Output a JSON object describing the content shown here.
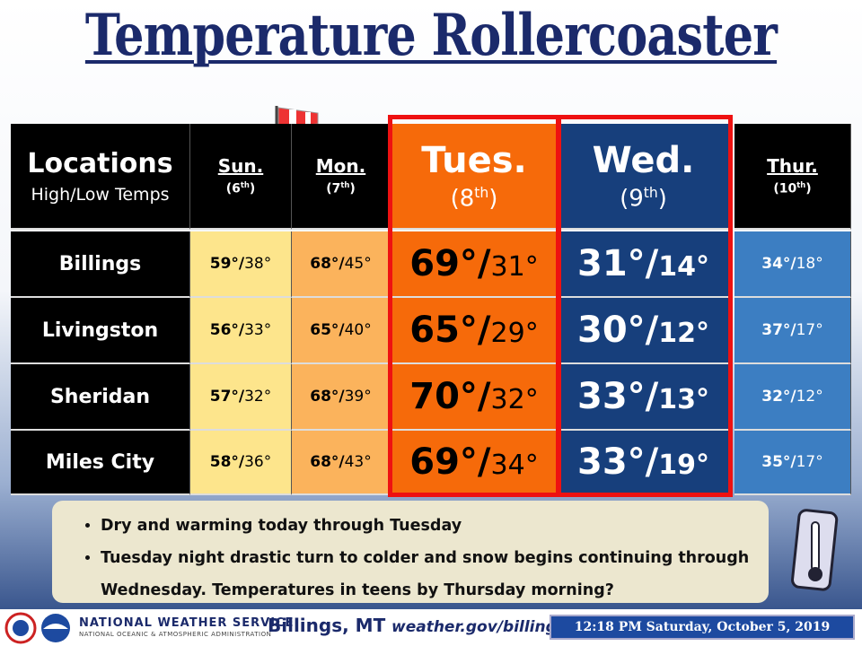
{
  "header": {
    "title": "Temperature Rollercoaster"
  },
  "table": {
    "corner": {
      "title": "Locations",
      "subtitle": "High/Low Temps"
    },
    "days": [
      {
        "name": "Sun.",
        "date": [
          "(6",
          "th",
          ")"
        ]
      },
      {
        "name": "Mon.",
        "date": [
          "(7",
          "th",
          ")"
        ]
      },
      {
        "name": "Tues.",
        "date": [
          "(8",
          "th",
          ")"
        ]
      },
      {
        "name": "Wed.",
        "date": [
          "(9",
          "th",
          ")"
        ]
      },
      {
        "name": "Thur.",
        "date": [
          "(10",
          "th",
          ")"
        ]
      }
    ],
    "rows": [
      {
        "location": "Billings",
        "temps": [
          [
            "59°/",
            "38°"
          ],
          [
            "68°/",
            "45°"
          ],
          [
            "69°/",
            "31°"
          ],
          [
            "31°/",
            "14°"
          ],
          [
            "34°/",
            "18°"
          ]
        ]
      },
      {
        "location": "Livingston",
        "temps": [
          [
            "56°/",
            "33°"
          ],
          [
            "65°/",
            "40°"
          ],
          [
            "65°/",
            "29°"
          ],
          [
            "30°/",
            "12°"
          ],
          [
            "37°/",
            "17°"
          ]
        ]
      },
      {
        "location": "Sheridan",
        "temps": [
          [
            "57°/",
            "32°"
          ],
          [
            "68°/",
            "39°"
          ],
          [
            "70°/",
            "32°"
          ],
          [
            "33°/",
            "13°"
          ],
          [
            "32°/",
            "12°"
          ]
        ]
      },
      {
        "location": "Miles City",
        "temps": [
          [
            "58°/",
            "36°"
          ],
          [
            "68°/",
            "43°"
          ],
          [
            "69°/",
            "34°"
          ],
          [
            "33°/",
            "19°"
          ],
          [
            "35°/",
            "17°"
          ]
        ]
      }
    ]
  },
  "bullets": [
    "Dry and warming today through Tuesday",
    "Tuesday night drastic turn to colder and snow begins continuing through Wednesday. Temperatures in teens by Thursday morning?"
  ],
  "footer": {
    "agency": "NATIONAL WEATHER SERVICE",
    "agency_sub": "NATIONAL OCEANIC & ATMOSPHERIC ADMINISTRATION",
    "office": "Billings, MT",
    "url": "weather.gov/billings",
    "timestamp": "12:18 PM Saturday, October 5, 2019"
  }
}
